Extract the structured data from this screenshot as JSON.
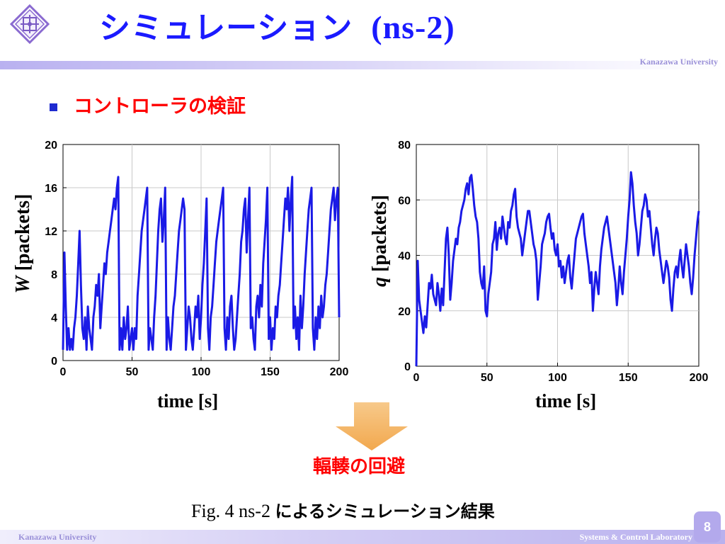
{
  "title": {
    "main": "シミュレーション",
    "sub": "(ns-2)"
  },
  "brand": {
    "top": "Kanazawa University",
    "footer_left": "Kanazawa University",
    "footer_right": "Systems & Control Laboratory"
  },
  "page_number": "8",
  "bullet_heading": "コントローラの検証",
  "arrow_label": "輻輳の回避",
  "caption": {
    "prefix": "Fig. 4  ns-2 ",
    "suffix": "によるシミュレーション結果"
  },
  "colors": {
    "title": "#1a1aff",
    "heading": "#ff0000",
    "series": "#1a1ae6",
    "arrow": "#f5b867",
    "accent": "#b9b1f0"
  },
  "chart_data": [
    {
      "type": "line",
      "ylabel_var": "W",
      "ylabel_unit": " [packets]",
      "xlabel": "time [s]",
      "xlim": [
        0,
        200
      ],
      "ylim": [
        0,
        20
      ],
      "xticks": [
        0,
        50,
        100,
        150,
        200
      ],
      "yticks": [
        0,
        4,
        8,
        12,
        16,
        20
      ],
      "grid": true,
      "series": [
        {
          "color": "#1a1ae6",
          "x": [
            0,
            1,
            2,
            3,
            4,
            5,
            6,
            7,
            8,
            9,
            10,
            11,
            12,
            13,
            14,
            15,
            16,
            17,
            18,
            19,
            20,
            21,
            22,
            23,
            24,
            25,
            26,
            27,
            28,
            29,
            30,
            31,
            32,
            33,
            34,
            35,
            36,
            37,
            38,
            39,
            40,
            41,
            42,
            43,
            44,
            45,
            46,
            47,
            48,
            49,
            50,
            51,
            52,
            53,
            54,
            55,
            56,
            57,
            58,
            59,
            60,
            61,
            62,
            63,
            64,
            65,
            66,
            67,
            68,
            69,
            70,
            71,
            72,
            73,
            74,
            75,
            76,
            77,
            78,
            79,
            80,
            81,
            82,
            83,
            84,
            85,
            86,
            87,
            88,
            89,
            90,
            91,
            92,
            93,
            94,
            95,
            96,
            97,
            98,
            99,
            100,
            101,
            102,
            103,
            104,
            105,
            106,
            107,
            108,
            109,
            110,
            111,
            112,
            113,
            114,
            115,
            116,
            117,
            118,
            119,
            120,
            121,
            122,
            123,
            124,
            125,
            126,
            127,
            128,
            129,
            130,
            131,
            132,
            133,
            134,
            135,
            136,
            137,
            138,
            139,
            140,
            141,
            142,
            143,
            144,
            145,
            146,
            147,
            148,
            149,
            150,
            151,
            152,
            153,
            154,
            155,
            156,
            157,
            158,
            159,
            160,
            161,
            162,
            163,
            164,
            165,
            166,
            167,
            168,
            169,
            170,
            171,
            172,
            173,
            174,
            175,
            176,
            177,
            178,
            179,
            180,
            181,
            182,
            183,
            184,
            185,
            186,
            187,
            188,
            189,
            190,
            191,
            192,
            193,
            194,
            195,
            196,
            197,
            198,
            199,
            200
          ],
          "y": [
            1,
            10,
            5,
            1,
            3,
            1,
            2,
            1,
            3,
            4,
            6,
            9,
            12,
            7,
            3,
            2,
            4,
            1,
            5,
            3,
            2,
            1,
            4,
            5,
            7,
            6,
            8,
            3,
            5,
            7,
            9,
            8,
            10,
            11,
            12,
            13,
            14,
            15,
            14,
            16,
            17,
            1,
            3,
            1,
            4,
            2,
            3,
            5,
            1,
            2,
            3,
            1,
            3,
            2,
            6,
            8,
            10,
            12,
            13,
            14,
            15,
            16,
            1,
            3,
            2,
            1,
            4,
            6,
            9,
            12,
            14,
            15,
            11,
            13,
            16,
            1,
            4,
            2,
            1,
            3,
            5,
            6,
            8,
            10,
            12,
            13,
            14,
            15,
            14,
            1,
            3,
            5,
            4,
            2,
            1,
            3,
            5,
            4,
            6,
            2,
            4,
            7,
            9,
            12,
            15,
            3,
            1,
            4,
            5,
            7,
            9,
            11,
            12,
            13,
            14,
            15,
            16,
            3,
            1,
            4,
            2,
            5,
            6,
            3,
            1,
            2,
            4,
            6,
            8,
            11,
            12,
            14,
            15,
            10,
            13,
            16,
            3,
            4,
            2,
            1,
            5,
            6,
            4,
            7,
            5,
            9,
            11,
            13,
            16,
            2,
            4,
            1,
            3,
            2,
            5,
            4,
            6,
            7,
            9,
            11,
            13,
            15,
            14,
            16,
            12,
            15,
            17,
            3,
            5,
            2,
            4,
            1,
            6,
            3,
            5,
            8,
            10,
            12,
            14,
            15,
            16,
            3,
            1,
            4,
            2,
            5,
            3,
            6,
            4,
            5,
            7,
            8,
            10,
            12,
            14,
            15,
            16,
            13,
            15,
            16,
            4
          ]
        }
      ]
    },
    {
      "type": "line",
      "ylabel_var": "q",
      "ylabel_unit": " [packets]",
      "xlabel": "time [s]",
      "xlim": [
        0,
        200
      ],
      "ylim": [
        0,
        80
      ],
      "xticks": [
        0,
        50,
        100,
        150,
        200
      ],
      "yticks": [
        0,
        20,
        40,
        60,
        80
      ],
      "grid": true,
      "series": [
        {
          "color": "#1a1ae6",
          "x": [
            0,
            1,
            2,
            3,
            4,
            5,
            6,
            7,
            8,
            9,
            10,
            11,
            12,
            13,
            14,
            15,
            16,
            17,
            18,
            19,
            20,
            21,
            22,
            23,
            24,
            25,
            26,
            27,
            28,
            29,
            30,
            31,
            32,
            33,
            34,
            35,
            36,
            37,
            38,
            39,
            40,
            41,
            42,
            43,
            44,
            45,
            46,
            47,
            48,
            49,
            50,
            51,
            52,
            53,
            54,
            55,
            56,
            57,
            58,
            59,
            60,
            61,
            62,
            63,
            64,
            65,
            66,
            67,
            68,
            69,
            70,
            71,
            72,
            73,
            74,
            75,
            76,
            77,
            78,
            79,
            80,
            81,
            82,
            83,
            84,
            85,
            86,
            87,
            88,
            89,
            90,
            91,
            92,
            93,
            94,
            95,
            96,
            97,
            98,
            99,
            100,
            101,
            102,
            103,
            104,
            105,
            106,
            107,
            108,
            109,
            110,
            111,
            112,
            113,
            114,
            115,
            116,
            117,
            118,
            119,
            120,
            121,
            122,
            123,
            124,
            125,
            126,
            127,
            128,
            129,
            130,
            131,
            132,
            133,
            134,
            135,
            136,
            137,
            138,
            139,
            140,
            141,
            142,
            143,
            144,
            145,
            146,
            147,
            148,
            149,
            150,
            151,
            152,
            153,
            154,
            155,
            156,
            157,
            158,
            159,
            160,
            161,
            162,
            163,
            164,
            165,
            166,
            167,
            168,
            169,
            170,
            171,
            172,
            173,
            174,
            175,
            176,
            177,
            178,
            179,
            180,
            181,
            182,
            183,
            184,
            185,
            186,
            187,
            188,
            189,
            190,
            191,
            192,
            193,
            194,
            195,
            196,
            197,
            198,
            199,
            200
          ],
          "y": [
            0,
            38,
            24,
            20,
            16,
            12,
            18,
            14,
            22,
            30,
            28,
            33,
            26,
            24,
            22,
            30,
            26,
            20,
            28,
            22,
            34,
            46,
            50,
            40,
            24,
            30,
            38,
            42,
            46,
            44,
            50,
            52,
            56,
            58,
            60,
            64,
            66,
            62,
            68,
            69,
            64,
            58,
            54,
            52,
            46,
            34,
            30,
            28,
            36,
            20,
            18,
            26,
            30,
            34,
            44,
            46,
            52,
            42,
            48,
            50,
            46,
            54,
            50,
            46,
            44,
            52,
            50,
            56,
            58,
            62,
            64,
            54,
            50,
            48,
            46,
            40,
            44,
            48,
            52,
            56,
            56,
            52,
            48,
            44,
            42,
            38,
            24,
            30,
            36,
            44,
            46,
            48,
            52,
            54,
            55,
            50,
            46,
            48,
            42,
            40,
            44,
            36,
            38,
            32,
            36,
            30,
            34,
            38,
            40,
            32,
            28,
            34,
            40,
            46,
            48,
            50,
            52,
            54,
            55,
            48,
            44,
            40,
            36,
            30,
            34,
            20,
            28,
            34,
            30,
            26,
            36,
            42,
            46,
            50,
            52,
            54,
            50,
            46,
            42,
            38,
            34,
            30,
            22,
            28,
            36,
            30,
            26,
            34,
            40,
            46,
            54,
            60,
            70,
            66,
            58,
            52,
            48,
            40,
            44,
            50,
            56,
            58,
            62,
            60,
            54,
            56,
            50,
            44,
            40,
            46,
            50,
            48,
            42,
            38,
            34,
            30,
            34,
            38,
            36,
            32,
            24,
            20,
            28,
            34,
            36,
            32,
            38,
            42,
            36,
            32,
            38,
            44,
            40,
            36,
            30,
            26,
            32,
            40,
            46,
            52,
            56
          ]
        }
      ]
    }
  ]
}
